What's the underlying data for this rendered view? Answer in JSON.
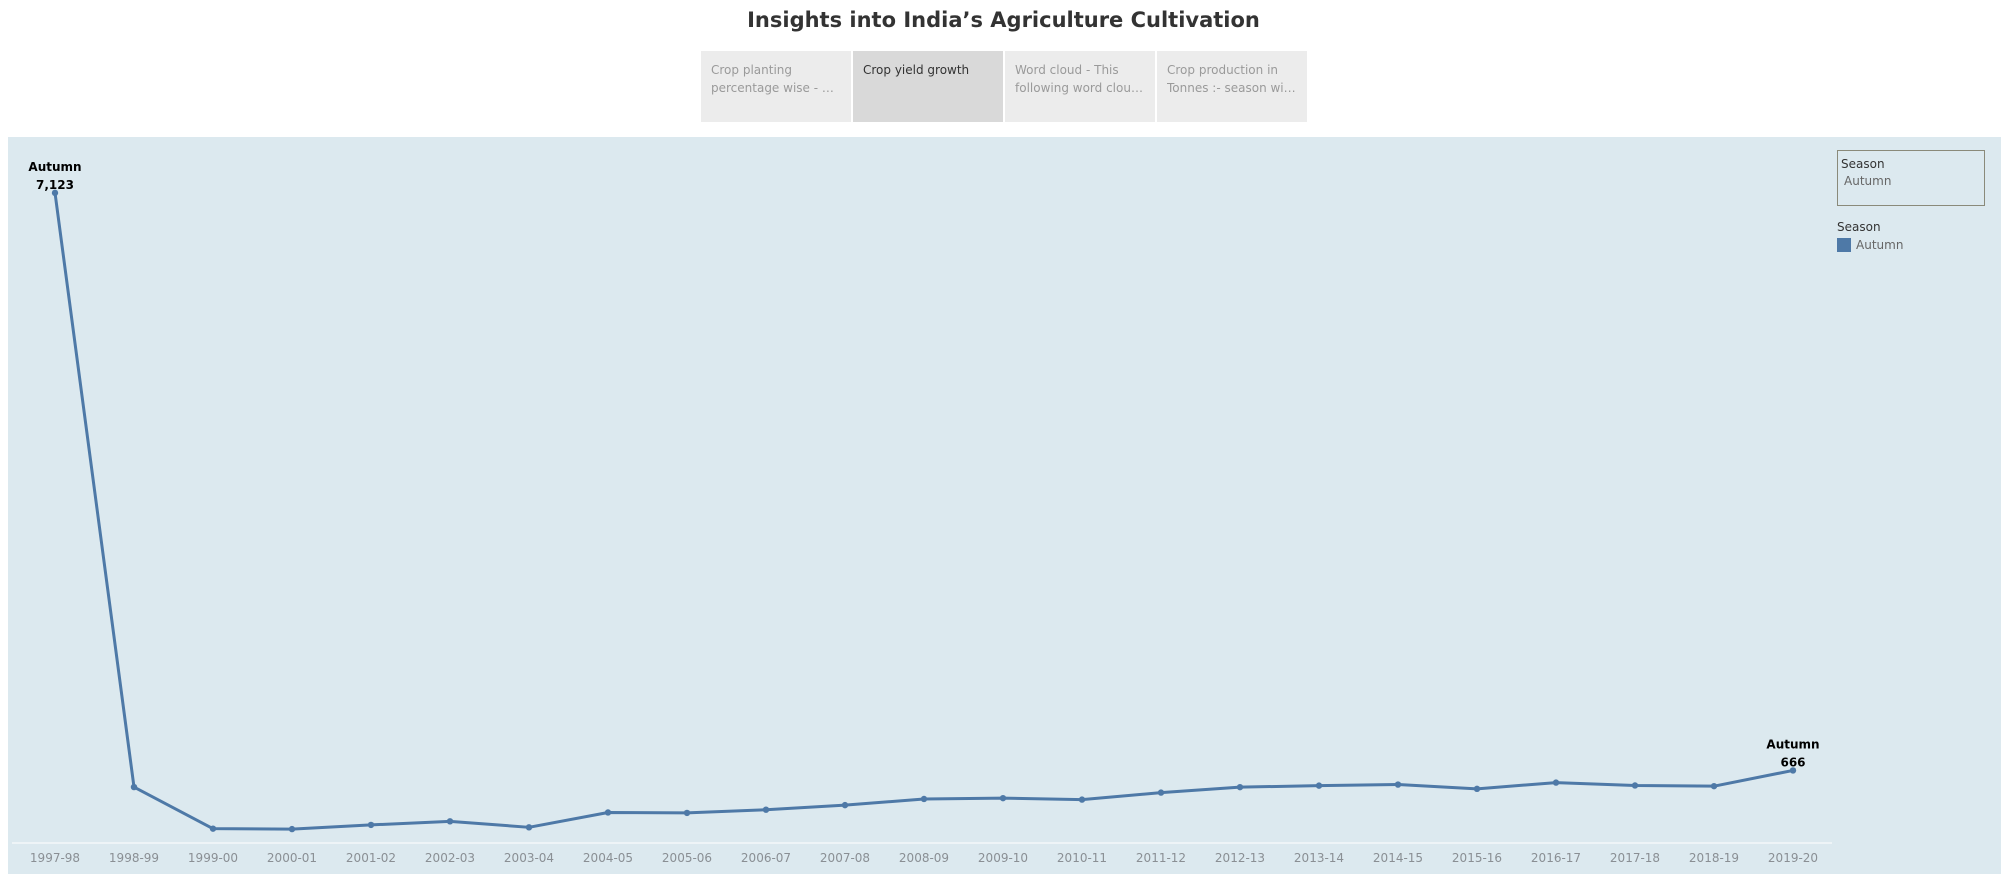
{
  "title": "Insights into India’s Agriculture Cultivation",
  "tabs": [
    {
      "line1": "Crop planting",
      "line2": "percentage wise - Thi..",
      "active": false
    },
    {
      "line1": "Crop yield growth",
      "line2": "",
      "active": true
    },
    {
      "line1": "Word cloud - This",
      "line2": "following word cloud ..",
      "active": false
    },
    {
      "line1": "Crop production in",
      "line2": "Tonnes :- season wise..",
      "active": false
    }
  ],
  "filter": {
    "label": "Season",
    "value": "Autumn"
  },
  "legend": {
    "title": "Season",
    "items": [
      {
        "label": "Autumn",
        "color": "#4e79a7"
      }
    ]
  },
  "chart_data": {
    "type": "line",
    "categories": [
      "1997-98",
      "1998-99",
      "1999-00",
      "2000-01",
      "2001-02",
      "2002-03",
      "2003-04",
      "2004-05",
      "2005-06",
      "2006-07",
      "2007-08",
      "2008-09",
      "2009-10",
      "2010-11",
      "2011-12",
      "2012-13",
      "2013-14",
      "2014-15",
      "2015-16",
      "2016-17",
      "2017-18",
      "2018-19",
      "2019-20"
    ],
    "series": [
      {
        "name": "Autumn",
        "color": "#4e79a7",
        "values": [
          7123,
          480,
          15,
          10,
          57,
          97,
          30,
          196,
          191,
          227,
          278,
          347,
          356,
          340,
          418,
          479,
          496,
          508,
          460,
          530,
          498,
          490,
          666
        ]
      }
    ],
    "labels": [
      {
        "index": 0,
        "series": "Autumn",
        "text": "7,123"
      },
      {
        "index": 22,
        "series": "Autumn",
        "text": "666"
      }
    ],
    "ylim": [
      0,
      7300
    ],
    "grid": false,
    "legend_position": "right",
    "background": "#dce9ef"
  }
}
